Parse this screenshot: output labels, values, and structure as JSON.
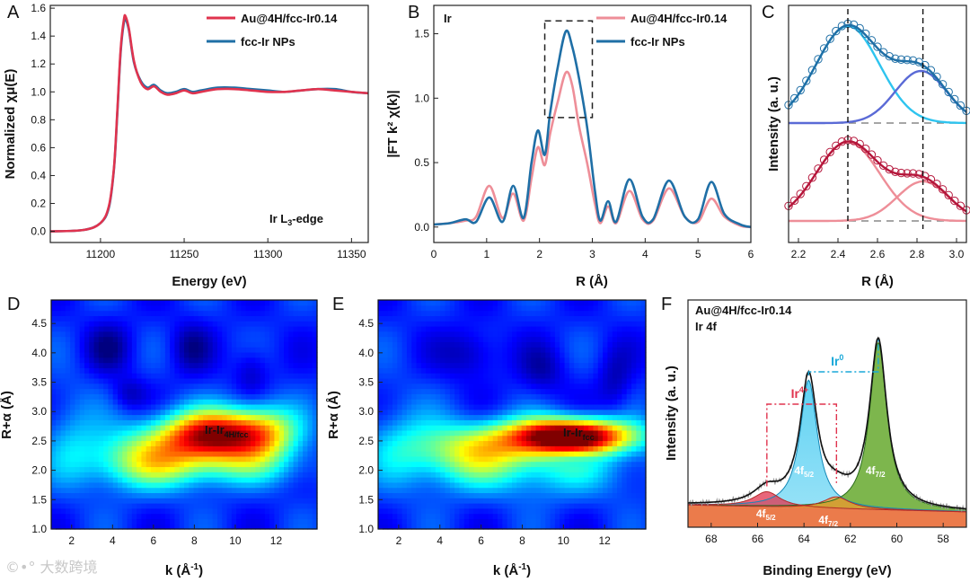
{
  "colors": {
    "red": "#e0334e",
    "blue": "#1f6fa6",
    "lightred": "#ee8e98",
    "cyan": "#2ec4ef",
    "indigo": "#5a6ad6"
  },
  "chart_data": [
    {
      "panel": "A",
      "type": "line",
      "xlabel": "Energy (eV)",
      "ylabel": "Normalized χμ(E)",
      "xlim": [
        11170,
        11360
      ],
      "ylim": [
        -0.08,
        1.62
      ],
      "xticks": [
        11200,
        11250,
        11300,
        11350
      ],
      "yticks": [
        0.0,
        0.2,
        0.4,
        0.6,
        0.8,
        1.0,
        1.2,
        1.4,
        1.6
      ],
      "annotation": "Ir L3-edge",
      "legend": [
        "Au@4H/fcc-Ir0.14",
        "fcc-Ir NPs"
      ],
      "series": [
        {
          "name": "Au@4H/fcc-Ir0.14",
          "color": "red",
          "x": [
            11170,
            11190,
            11200,
            11205,
            11208,
            11210,
            11212,
            11214,
            11215,
            11217,
            11220,
            11224,
            11228,
            11232,
            11236,
            11240,
            11245,
            11250,
            11255,
            11260,
            11270,
            11280,
            11290,
            11300,
            11310,
            11320,
            11330,
            11340,
            11350,
            11360
          ],
          "y": [
            0.0,
            0.01,
            0.06,
            0.18,
            0.45,
            0.85,
            1.3,
            1.52,
            1.54,
            1.45,
            1.22,
            1.07,
            1.02,
            1.04,
            1.0,
            0.98,
            0.99,
            1.01,
            0.99,
            1.0,
            1.02,
            1.02,
            1.01,
            1.0,
            1.0,
            1.01,
            1.02,
            1.01,
            1.0,
            0.99
          ]
        },
        {
          "name": "fcc-Ir NPs",
          "color": "blue",
          "x": [
            11170,
            11190,
            11200,
            11205,
            11208,
            11210,
            11212,
            11214,
            11215,
            11217,
            11220,
            11224,
            11228,
            11232,
            11236,
            11240,
            11245,
            11250,
            11255,
            11260,
            11270,
            11280,
            11290,
            11300,
            11310,
            11320,
            11330,
            11340,
            11350,
            11360
          ],
          "y": [
            0.0,
            0.01,
            0.06,
            0.17,
            0.44,
            0.83,
            1.28,
            1.5,
            1.52,
            1.44,
            1.21,
            1.08,
            1.03,
            1.05,
            1.01,
            0.99,
            1.0,
            1.02,
            1.0,
            1.01,
            1.03,
            1.03,
            1.02,
            1.01,
            1.0,
            1.01,
            1.02,
            1.02,
            1.0,
            0.99
          ]
        }
      ]
    },
    {
      "panel": "B",
      "type": "line",
      "xlabel": "R (Å)",
      "ylabel": "|FT k² χ(k)|",
      "xlim": [
        0,
        6
      ],
      "ylim": [
        -0.12,
        1.72
      ],
      "xticks": [
        0,
        1,
        2,
        3,
        4,
        5,
        6
      ],
      "yticks": [
        0.0,
        0.5,
        1.0,
        1.5
      ],
      "annotation": "Ir",
      "legend": [
        "Au@4H/fcc-Ir0.14",
        "fcc-Ir NPs"
      ],
      "series": [
        {
          "name": "Au@4H/fcc-Ir0.14",
          "color": "lightred",
          "x": [
            0,
            0.3,
            0.6,
            0.8,
            1.05,
            1.3,
            1.5,
            1.7,
            1.85,
            1.97,
            2.1,
            2.2,
            2.35,
            2.5,
            2.62,
            2.75,
            2.9,
            3.05,
            3.15,
            3.3,
            3.45,
            3.7,
            3.95,
            4.15,
            4.45,
            4.75,
            5.0,
            5.25,
            5.5,
            5.8,
            6.0
          ],
          "y": [
            0.02,
            0.03,
            0.05,
            0.08,
            0.32,
            0.07,
            0.26,
            0.05,
            0.38,
            0.62,
            0.48,
            0.72,
            0.98,
            1.2,
            1.1,
            0.78,
            0.5,
            0.18,
            0.03,
            0.16,
            0.03,
            0.28,
            0.06,
            0.05,
            0.3,
            0.08,
            0.04,
            0.22,
            0.08,
            0.01,
            0.0
          ]
        },
        {
          "name": "fcc-Ir NPs",
          "color": "blue",
          "x": [
            0,
            0.3,
            0.6,
            0.8,
            1.05,
            1.3,
            1.5,
            1.7,
            1.85,
            1.97,
            2.1,
            2.2,
            2.35,
            2.5,
            2.62,
            2.75,
            2.9,
            3.05,
            3.15,
            3.3,
            3.45,
            3.7,
            3.95,
            4.15,
            4.45,
            4.75,
            5.0,
            5.25,
            5.5,
            5.8,
            6.0
          ],
          "y": [
            0.02,
            0.03,
            0.06,
            0.04,
            0.23,
            0.04,
            0.32,
            0.07,
            0.5,
            0.75,
            0.56,
            0.88,
            1.25,
            1.52,
            1.4,
            1.15,
            0.78,
            0.28,
            0.05,
            0.2,
            0.04,
            0.37,
            0.08,
            0.06,
            0.36,
            0.08,
            0.06,
            0.35,
            0.1,
            0.02,
            0.0
          ]
        }
      ]
    },
    {
      "panel": "C",
      "type": "line",
      "xlabel": "R (Å)",
      "ylabel": "Intensity (a. u.)",
      "xlim": [
        2.15,
        3.05
      ],
      "ylim": [
        0,
        1
      ],
      "xticks": [
        2.2,
        2.4,
        2.6,
        2.8,
        3.0
      ],
      "dashed_vertical_x": [
        2.45,
        2.83
      ],
      "series": [
        {
          "name": "upper fit",
          "color": "blue",
          "peak1": 2.45,
          "peak2": 2.82
        },
        {
          "name": "lower fit",
          "color": "red",
          "peak1": 2.45,
          "peak2": 2.83
        }
      ]
    },
    {
      "panel": "D",
      "type": "heatmap",
      "xlabel": "k (Å⁻¹)",
      "ylabel": "R+α (Å)",
      "xlim": [
        1,
        14
      ],
      "ylim": [
        1.0,
        4.9
      ],
      "xticks": [
        2,
        4,
        6,
        8,
        10,
        12
      ],
      "yticks": [
        1.0,
        1.5,
        2.0,
        2.5,
        3.0,
        3.5,
        4.0,
        4.5
      ],
      "label": "Ir-Ir",
      "label_sub": "4H/fcc",
      "maximum": {
        "k": 9.0,
        "R": 2.6
      }
    },
    {
      "panel": "E",
      "type": "heatmap",
      "xlabel": "k (Å⁻¹)",
      "ylabel": "R+α (Å)",
      "xlim": [
        1,
        14
      ],
      "ylim": [
        1.0,
        4.9
      ],
      "xticks": [
        2,
        4,
        6,
        8,
        10,
        12
      ],
      "yticks": [
        1.0,
        1.5,
        2.0,
        2.5,
        3.0,
        3.5,
        4.0,
        4.5
      ],
      "label": "Ir-Ir",
      "label_sub": "fcc",
      "maximum": {
        "k": 10.5,
        "R": 2.6
      }
    },
    {
      "panel": "F",
      "type": "line",
      "xlabel": "Binding Energy (eV)",
      "ylabel": "Intensity (a. u.)",
      "xlim": [
        69,
        57
      ],
      "ylim": [
        0,
        1
      ],
      "xticks": [
        68,
        66,
        64,
        62,
        60,
        58
      ],
      "sample": "Au@4H/fcc-Ir0.14",
      "region": "Ir 4f",
      "brackets": [
        {
          "label": "Ir",
          "sup": "0"
        },
        {
          "label": "Ir",
          "sup": "4+"
        }
      ],
      "peaks": [
        {
          "label": "4f",
          "sub": "5/2",
          "state": "Ir0",
          "center": 63.8,
          "height": 0.75
        },
        {
          "label": "4f",
          "sub": "7/2",
          "state": "Ir0",
          "center": 60.8,
          "height": 0.98
        },
        {
          "label": "4f",
          "sub": "5/2",
          "state": "Ir4+",
          "center": 65.6,
          "height": 0.09
        },
        {
          "label": "4f",
          "sub": "7/2",
          "state": "Ir4+",
          "center": 62.6,
          "height": 0.07
        }
      ]
    }
  ],
  "watermark": "©•° 大数跨境"
}
